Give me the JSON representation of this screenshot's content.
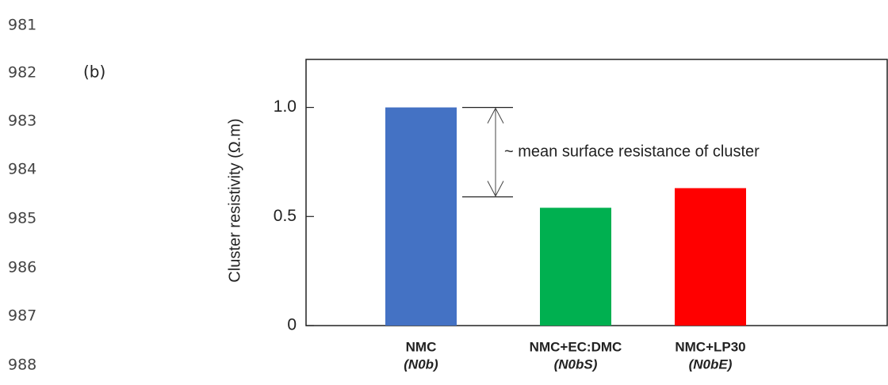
{
  "line_numbers": [
    "981",
    "982",
    "983",
    "984",
    "985",
    "986",
    "987",
    "988"
  ],
  "panel_label": "(b)",
  "chart_data": {
    "type": "bar",
    "y_label": "Cluster resistivity (Ω.m)",
    "categories": [
      "NMC",
      "NMC+EC:DMC",
      "NMC+LP30"
    ],
    "sublabels": [
      "(N0b)",
      "(N0bS)",
      "(N0bE)"
    ],
    "values": [
      1.0,
      0.54,
      0.63
    ],
    "colors": [
      "#4472c4",
      "#00b050",
      "#ff0000"
    ],
    "ylim": [
      0,
      1.22
    ],
    "yticks": [
      0,
      0.5,
      {
        "value": 1,
        "label": "1.0"
      }
    ],
    "annotation": {
      "text": "~ mean surface resistance of cluster",
      "from": 1.0,
      "to": 0.59
    }
  }
}
